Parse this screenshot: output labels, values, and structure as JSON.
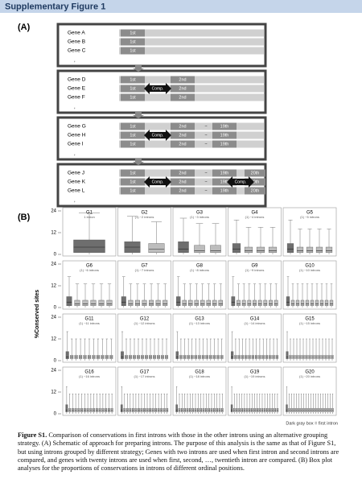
{
  "header": {
    "title": "Supplementary Figure 1"
  },
  "panel_a": {
    "label": "(A)",
    "groups": [
      {
        "genes": [
          "Gene A",
          "Gene B",
          "Gene C"
        ],
        "more": ",",
        "cells": [
          "1st"
        ],
        "comps": []
      },
      {
        "genes": [
          "Gene D",
          "Gene E",
          "Gene F"
        ],
        "more": ",",
        "cells": [
          "1st",
          "2nd"
        ],
        "comps": [
          "Comp."
        ]
      },
      {
        "genes": [
          "Gene G",
          "Gene H",
          "Gene I"
        ],
        "more": ",",
        "cells": [
          "1st",
          "2nd",
          "~",
          "19th"
        ],
        "comps": [
          "Comp."
        ]
      },
      {
        "genes": [
          "Gene J",
          "Gene K",
          "Gene L"
        ],
        "more": ",",
        "cells": [
          "1st",
          "2nd",
          "~",
          "19th",
          "20th"
        ],
        "comps": [
          "Comp.",
          "Comp."
        ]
      }
    ]
  },
  "panel_b": {
    "label": "(B)",
    "y_label": "%Conserved sites",
    "ylim": [
      0,
      24
    ],
    "yticks": [
      0,
      12,
      24
    ],
    "note": "Dark gray box = first intron",
    "panels": [
      {
        "title": "G1",
        "subtitle": "1 intron",
        "introns": 1,
        "first": [
          0,
          1,
          4,
          8,
          23
        ]
      },
      {
        "title": "G2",
        "subtitle": "(1) ~2 introns",
        "introns": 2,
        "first": [
          0,
          1,
          4,
          7,
          21
        ],
        "other": [
          0,
          1,
          3,
          6,
          18
        ]
      },
      {
        "title": "G3",
        "subtitle": "(1) ~3 introns",
        "introns": 3,
        "first": [
          0,
          1,
          3,
          7,
          20
        ],
        "other": [
          0,
          1,
          2,
          5,
          17
        ]
      },
      {
        "title": "G4",
        "subtitle": "(1) ~4 introns",
        "introns": 4,
        "first": [
          0,
          1,
          3,
          6,
          19
        ],
        "other": [
          0,
          1,
          2,
          4,
          15
        ]
      },
      {
        "title": "G5",
        "subtitle": "(1) ~5 introns",
        "introns": 5,
        "first": [
          0,
          1,
          3,
          6,
          19
        ],
        "other": [
          0,
          1,
          2,
          4,
          14
        ]
      },
      {
        "title": "G6",
        "subtitle": "(1) ~6 introns",
        "introns": 6,
        "first": [
          0,
          1,
          3,
          6,
          17
        ],
        "other": [
          0,
          1,
          2,
          4,
          13
        ]
      },
      {
        "title": "G7",
        "subtitle": "(1) ~7 introns",
        "introns": 7,
        "first": [
          0,
          1,
          3,
          6,
          17
        ],
        "other": [
          0,
          1,
          2,
          4,
          13
        ]
      },
      {
        "title": "G8",
        "subtitle": "(1) ~8 introns",
        "introns": 8,
        "first": [
          0,
          1,
          3,
          6,
          17
        ],
        "other": [
          0,
          1,
          2,
          4,
          13
        ]
      },
      {
        "title": "G9",
        "subtitle": "(1) ~9 introns",
        "introns": 9,
        "first": [
          0,
          1,
          3,
          6,
          17
        ],
        "other": [
          0,
          1,
          2,
          4,
          13
        ]
      },
      {
        "title": "G10",
        "subtitle": "(1) ~10 introns",
        "introns": 10,
        "first": [
          0,
          1,
          3,
          6,
          17
        ],
        "other": [
          0,
          1,
          2,
          4,
          13
        ]
      },
      {
        "title": "G11",
        "subtitle": "(1) ~11 introns",
        "introns": 11,
        "first": [
          0,
          1,
          2,
          5,
          16
        ],
        "other": [
          0,
          1,
          2,
          3,
          12
        ]
      },
      {
        "title": "G12",
        "subtitle": "(1) ~12 introns",
        "introns": 12,
        "first": [
          0,
          1,
          2,
          5,
          16
        ],
        "other": [
          0,
          1,
          2,
          3,
          12
        ]
      },
      {
        "title": "G13",
        "subtitle": "(1) ~13 introns",
        "introns": 13,
        "first": [
          0,
          1,
          2,
          5,
          16
        ],
        "other": [
          0,
          1,
          2,
          3,
          12
        ]
      },
      {
        "title": "G14",
        "subtitle": "(1) ~14 introns",
        "introns": 14,
        "first": [
          0,
          1,
          2,
          5,
          16
        ],
        "other": [
          0,
          1,
          2,
          3,
          12
        ]
      },
      {
        "title": "G15",
        "subtitle": "(1) ~15 introns",
        "introns": 15,
        "first": [
          0,
          1,
          2,
          5,
          16
        ],
        "other": [
          0,
          1,
          2,
          3,
          12
        ]
      },
      {
        "title": "G16",
        "subtitle": "(1) ~16 introns",
        "introns": 16,
        "first": [
          0,
          1,
          2,
          5,
          15
        ],
        "other": [
          0,
          1,
          2,
          3,
          11
        ]
      },
      {
        "title": "G17",
        "subtitle": "(1) ~17 introns",
        "introns": 17,
        "first": [
          0,
          1,
          2,
          5,
          15
        ],
        "other": [
          0,
          1,
          2,
          3,
          11
        ]
      },
      {
        "title": "G18",
        "subtitle": "(1) ~18 introns",
        "introns": 18,
        "first": [
          0,
          1,
          2,
          5,
          15
        ],
        "other": [
          0,
          1,
          2,
          3,
          11
        ]
      },
      {
        "title": "G19",
        "subtitle": "(1) ~19 introns",
        "introns": 19,
        "first": [
          0,
          1,
          2,
          5,
          15
        ],
        "other": [
          0,
          1,
          2,
          3,
          11
        ]
      },
      {
        "title": "G20",
        "subtitle": "(1) ~20 introns",
        "introns": 20,
        "first": [
          0,
          1,
          2,
          5,
          15
        ],
        "other": [
          0,
          1,
          2,
          3,
          11
        ]
      }
    ]
  },
  "caption": {
    "lead": "Figure S1.",
    "text": "Comparison of conservations in first introns with those in the other introns using an alternative grouping strategy. (A) Schematic of approach for preparing introns. The purpose of this analysis is the same as that of Figure S1, but using introns grouped by different strategy; Genes with two introns are used when first intron and second introns are compared, and genes with twenty introns are used when first, second, …, twentieth intron are compared. (B) Box plot analyses for the proportions of conservations in introns of different ordinal positions."
  }
}
